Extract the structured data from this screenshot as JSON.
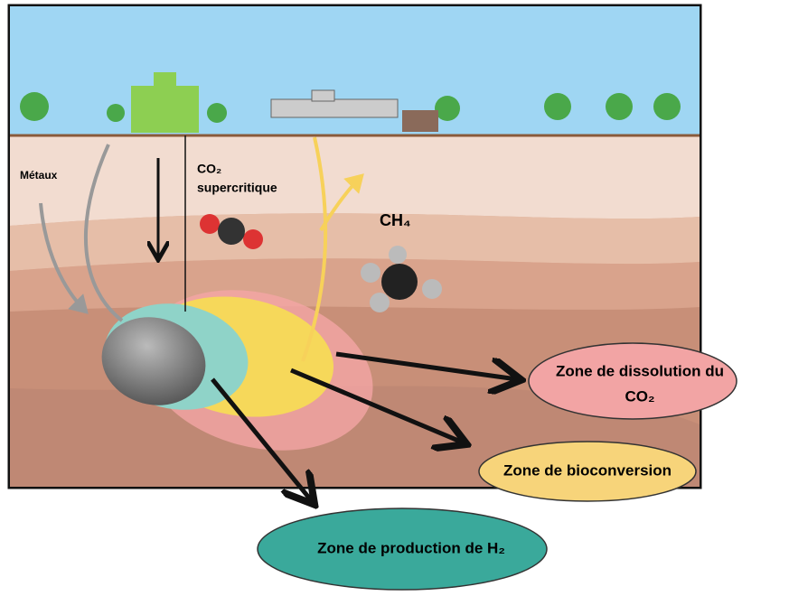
{
  "labels": {
    "metals": "Métaux",
    "co2_line1": "CO₂",
    "co2_line2": "supercritique",
    "ch4": "CH₄"
  },
  "zones": [
    {
      "label_line1": "Zone de dissolution du",
      "label_line2": "CO₂"
    },
    {
      "label": "Zone de bioconversion"
    },
    {
      "label": "Zone de production de H₂"
    }
  ]
}
